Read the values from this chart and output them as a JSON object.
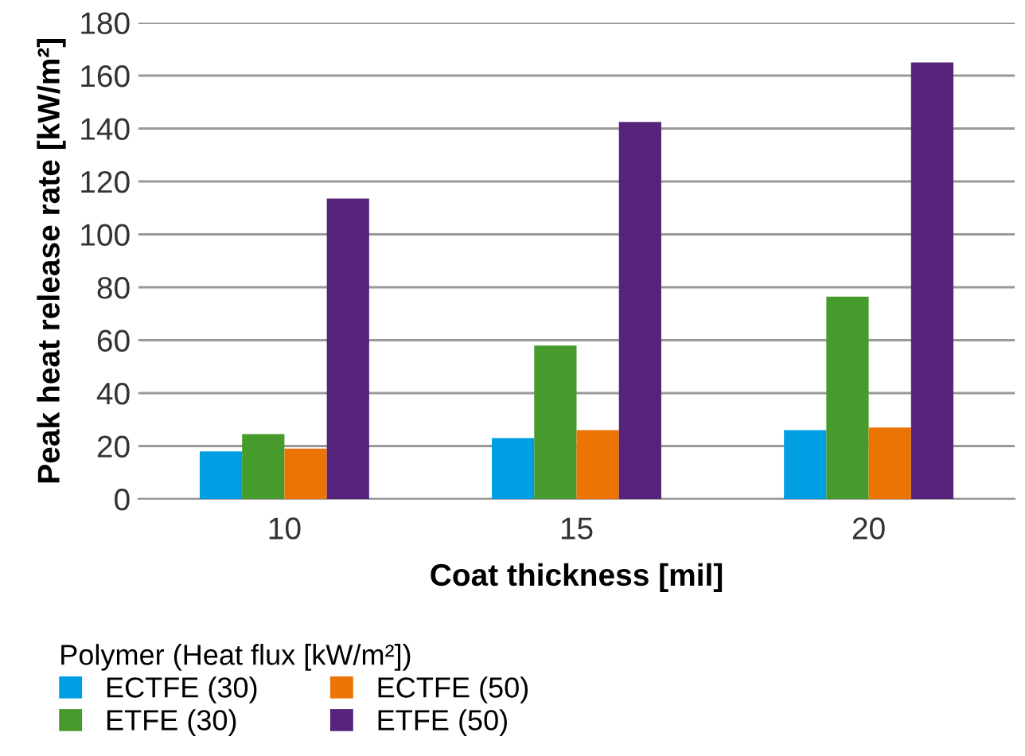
{
  "chart_data": {
    "type": "bar",
    "xlabel": "Coat thickness [mil]",
    "ylabel": "Peak heat release rate [kW/m²]",
    "legend_title": "Polymer (Heat flux [kW/m²])",
    "categories": [
      "10",
      "15",
      "20"
    ],
    "series": [
      {
        "name": "ECTFE (30)",
        "color": "#009fe3",
        "values": [
          18,
          23,
          26
        ]
      },
      {
        "name": "ETFE (30)",
        "color": "#469b2c",
        "values": [
          24.5,
          58,
          76.5
        ]
      },
      {
        "name": "ECTFE (50)",
        "color": "#ec7404",
        "values": [
          19,
          26,
          27
        ]
      },
      {
        "name": "ETFE (50)",
        "color": "#56237a",
        "values": [
          113.5,
          142.5,
          165
        ]
      }
    ],
    "ylim": [
      0,
      180
    ],
    "yticks": [
      0,
      20,
      40,
      60,
      80,
      100,
      120,
      140,
      160,
      180
    ],
    "grid": "y",
    "legend": "bottom"
  }
}
